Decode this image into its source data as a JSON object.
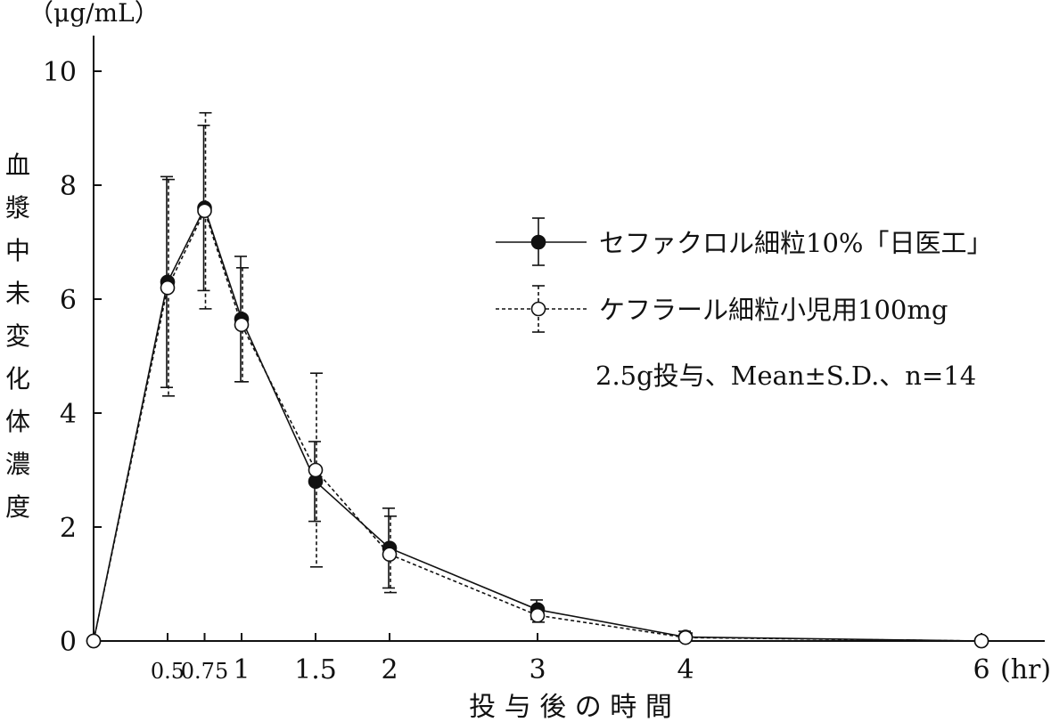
{
  "chart_data": {
    "type": "line",
    "y_unit": "（μg/mL）",
    "ylabel_chars": [
      "血",
      "漿",
      "中",
      "未",
      "変",
      "化",
      "体",
      "濃",
      "度"
    ],
    "xlabel": "投 与 後 の 時 間",
    "x_unit": "(hr)",
    "x_ticks": [
      0.5,
      0.75,
      1,
      1.5,
      2,
      3,
      4,
      6
    ],
    "x_tick_labels": [
      "0.5",
      "0.75",
      "1",
      "1.5",
      "2",
      "3",
      "4",
      "6"
    ],
    "y_ticks": [
      0,
      2,
      4,
      6,
      8,
      10
    ],
    "y_tick_labels": [
      "0",
      "2",
      "4",
      "6",
      "8",
      "10"
    ],
    "xlim": [
      0,
      6.4
    ],
    "ylim": [
      0,
      10.5
    ],
    "legend_position": "top-right",
    "note": "2.5g投与、Mean±S.D.、n=14",
    "colors": {
      "line": "#111111",
      "marker_filled": "#111111",
      "marker_open": "#ffffff"
    },
    "series": [
      {
        "name": "セファクロル細粒10%「日医工」",
        "style": "solid",
        "marker": "filled-circle",
        "x": [
          0,
          0.5,
          0.75,
          1,
          1.5,
          2,
          3,
          4,
          6
        ],
        "y": [
          0,
          6.3,
          7.6,
          5.65,
          2.8,
          1.63,
          0.55,
          0.07,
          0
        ],
        "sd": [
          0,
          1.85,
          1.45,
          1.1,
          0.7,
          0.7,
          0.17,
          0.1,
          0
        ]
      },
      {
        "name": "ケフラール細粒小児用100mg",
        "style": "dashed",
        "marker": "open-circle",
        "x": [
          0,
          0.5,
          0.75,
          1,
          1.5,
          2,
          3,
          4,
          6
        ],
        "y": [
          0,
          6.2,
          7.55,
          5.55,
          3.0,
          1.52,
          0.45,
          0.06,
          0
        ],
        "sd": [
          0,
          1.9,
          1.72,
          1.0,
          1.7,
          0.67,
          0.12,
          0.08,
          0
        ]
      }
    ]
  }
}
